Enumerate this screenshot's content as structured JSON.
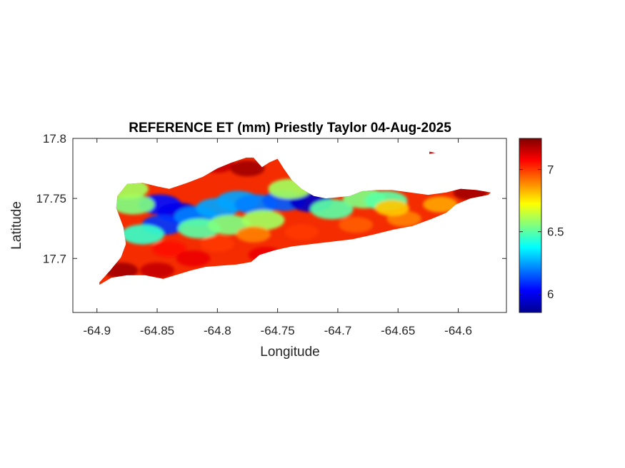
{
  "chart_data": {
    "type": "heatmap",
    "title": "REFERENCE ET (mm) Priestly Taylor 04-Aug-2025",
    "xlabel": "Longitude",
    "ylabel": "Latitude",
    "xlim": [
      -64.92,
      -64.56
    ],
    "ylim": [
      17.655,
      17.8
    ],
    "xticks": [
      -64.9,
      -64.85,
      -64.8,
      -64.75,
      -64.7,
      -64.65,
      -64.6
    ],
    "xtick_labels": [
      "-64.9",
      "-64.85",
      "-64.8",
      "-64.75",
      "-64.7",
      "-64.65",
      "-64.6"
    ],
    "yticks": [
      17.7,
      17.75,
      17.8
    ],
    "ytick_labels": [
      "17.7",
      "17.75",
      "17.8"
    ],
    "colorbar": {
      "colormap": "jet",
      "clim": [
        5.85,
        7.25
      ],
      "ticks": [
        6,
        6.5,
        7
      ],
      "tick_labels": [
        "6",
        "6.5",
        "7"
      ]
    },
    "grid": false,
    "island_outline": [
      [
        -64.898,
        17.68
      ],
      [
        -64.889,
        17.69
      ],
      [
        -64.88,
        17.701
      ],
      [
        -64.876,
        17.712
      ],
      [
        -64.878,
        17.726
      ],
      [
        -64.884,
        17.742
      ],
      [
        -64.883,
        17.752
      ],
      [
        -64.875,
        17.762
      ],
      [
        -64.862,
        17.763
      ],
      [
        -64.85,
        17.76
      ],
      [
        -64.84,
        17.758
      ],
      [
        -64.825,
        17.763
      ],
      [
        -64.812,
        17.768
      ],
      [
        -64.8,
        17.775
      ],
      [
        -64.788,
        17.78
      ],
      [
        -64.776,
        17.784
      ],
      [
        -64.77,
        17.784
      ],
      [
        -64.763,
        17.776
      ],
      [
        -64.757,
        17.78
      ],
      [
        -64.75,
        17.783
      ],
      [
        -64.745,
        17.775
      ],
      [
        -64.738,
        17.765
      ],
      [
        -64.73,
        17.758
      ],
      [
        -64.72,
        17.752
      ],
      [
        -64.71,
        17.75
      ],
      [
        -64.7,
        17.751
      ],
      [
        -64.69,
        17.752
      ],
      [
        -64.68,
        17.756
      ],
      [
        -64.668,
        17.757
      ],
      [
        -64.655,
        17.757
      ],
      [
        -64.64,
        17.755
      ],
      [
        -64.625,
        17.753
      ],
      [
        -64.61,
        17.755
      ],
      [
        -64.598,
        17.758
      ],
      [
        -64.585,
        17.757
      ],
      [
        -64.573,
        17.755
      ],
      [
        -64.575,
        17.753
      ],
      [
        -64.59,
        17.75
      ],
      [
        -64.602,
        17.745
      ],
      [
        -64.61,
        17.738
      ],
      [
        -64.622,
        17.733
      ],
      [
        -64.638,
        17.727
      ],
      [
        -64.654,
        17.724
      ],
      [
        -64.67,
        17.72
      ],
      [
        -64.688,
        17.716
      ],
      [
        -64.705,
        17.714
      ],
      [
        -64.722,
        17.712
      ],
      [
        -64.738,
        17.71
      ],
      [
        -64.752,
        17.707
      ],
      [
        -64.765,
        17.703
      ],
      [
        -64.772,
        17.697
      ],
      [
        -64.784,
        17.695
      ],
      [
        -64.797,
        17.694
      ],
      [
        -64.81,
        17.693
      ],
      [
        -64.822,
        17.69
      ],
      [
        -64.835,
        17.686
      ],
      [
        -64.845,
        17.683
      ],
      [
        -64.86,
        17.686
      ],
      [
        -64.875,
        17.686
      ],
      [
        -64.888,
        17.684
      ],
      [
        -64.898,
        17.678
      ]
    ],
    "islet_outline": [
      [
        -64.624,
        17.789
      ],
      [
        -64.619,
        17.788
      ],
      [
        -64.624,
        17.787
      ]
    ],
    "hotspots": [
      {
        "lon": -64.848,
        "lat": 17.745,
        "value": 6.05
      },
      {
        "lon": -64.832,
        "lat": 17.738,
        "value": 6.0
      },
      {
        "lon": -64.845,
        "lat": 17.728,
        "value": 6.1
      },
      {
        "lon": -64.818,
        "lat": 17.735,
        "value": 6.2
      },
      {
        "lon": -64.8,
        "lat": 17.742,
        "value": 6.25
      },
      {
        "lon": -64.783,
        "lat": 17.748,
        "value": 6.25
      },
      {
        "lon": -64.768,
        "lat": 17.745,
        "value": 6.2
      },
      {
        "lon": -64.745,
        "lat": 17.748,
        "value": 6.15
      },
      {
        "lon": -64.722,
        "lat": 17.747,
        "value": 5.95
      },
      {
        "lon": -64.87,
        "lat": 17.745,
        "value": 6.55
      },
      {
        "lon": -64.862,
        "lat": 17.72,
        "value": 6.45
      },
      {
        "lon": -64.815,
        "lat": 17.725,
        "value": 6.5
      },
      {
        "lon": -64.79,
        "lat": 17.728,
        "value": 6.55
      },
      {
        "lon": -64.762,
        "lat": 17.732,
        "value": 6.6
      },
      {
        "lon": -64.705,
        "lat": 17.741,
        "value": 6.5
      },
      {
        "lon": -64.678,
        "lat": 17.75,
        "value": 6.55
      },
      {
        "lon": -64.66,
        "lat": 17.748,
        "value": 6.5
      },
      {
        "lon": -64.875,
        "lat": 17.758,
        "value": 6.6
      },
      {
        "lon": -64.74,
        "lat": 17.758,
        "value": 6.6
      },
      {
        "lon": -64.8,
        "lat": 17.712,
        "value": 7.0
      },
      {
        "lon": -64.73,
        "lat": 17.722,
        "value": 7.0
      },
      {
        "lon": -64.685,
        "lat": 17.728,
        "value": 6.95
      },
      {
        "lon": -64.645,
        "lat": 17.733,
        "value": 6.9
      },
      {
        "lon": -64.615,
        "lat": 17.745,
        "value": 6.85
      },
      {
        "lon": -64.655,
        "lat": 17.742,
        "value": 6.8
      },
      {
        "lon": -64.77,
        "lat": 17.72,
        "value": 6.9
      },
      {
        "lon": -64.84,
        "lat": 17.708,
        "value": 7.05
      },
      {
        "lon": -64.88,
        "lat": 17.69,
        "value": 7.2
      },
      {
        "lon": -64.85,
        "lat": 17.69,
        "value": 7.15
      },
      {
        "lon": -64.8,
        "lat": 17.778,
        "value": 7.15
      },
      {
        "lon": -64.775,
        "lat": 17.775,
        "value": 7.2
      },
      {
        "lon": -64.82,
        "lat": 17.7,
        "value": 7.1
      },
      {
        "lon": -64.59,
        "lat": 17.755,
        "value": 7.2
      },
      {
        "lon": -64.76,
        "lat": 17.703,
        "value": 7.1
      }
    ]
  }
}
